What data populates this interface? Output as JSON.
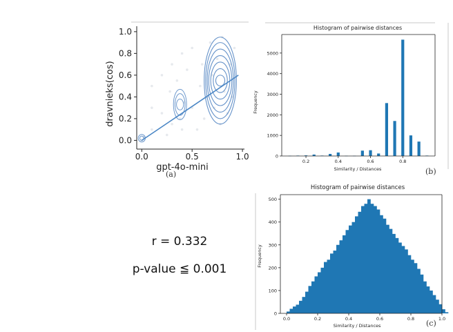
{
  "chart_data": [
    {
      "type": "scatter",
      "panel_label": "(a)",
      "xlabel": "gpt-4o-mini",
      "ylabel": "dravnieks(cos)",
      "xlim": [
        -0.05,
        1.02
      ],
      "ylim": [
        -0.08,
        1.05
      ],
      "xticks": [
        "0.0",
        "0.5",
        "1.0"
      ],
      "yticks": [
        "0.0",
        "0.2",
        "0.4",
        "0.6",
        "0.8",
        "1.0"
      ],
      "regression_line": {
        "x": [
          0.0,
          0.96
        ],
        "y": [
          0.0,
          0.6
        ]
      },
      "kde_peaks": [
        {
          "x": 0.0,
          "y": 0.02
        },
        {
          "x": 0.38,
          "y": 0.33
        },
        {
          "x": 0.78,
          "y": 0.55
        }
      ],
      "points": [
        {
          "x": 0.0,
          "y": 0.0
        },
        {
          "x": 0.02,
          "y": 0.03
        },
        {
          "x": 0.1,
          "y": 0.5
        },
        {
          "x": 0.1,
          "y": 0.3
        },
        {
          "x": 0.1,
          "y": 0.1
        },
        {
          "x": 0.2,
          "y": 0.6
        },
        {
          "x": 0.2,
          "y": 0.25
        },
        {
          "x": 0.25,
          "y": 0.05
        },
        {
          "x": 0.28,
          "y": 0.45
        },
        {
          "x": 0.3,
          "y": 0.7
        },
        {
          "x": 0.3,
          "y": 0.15
        },
        {
          "x": 0.35,
          "y": 0.55
        },
        {
          "x": 0.38,
          "y": 0.2
        },
        {
          "x": 0.4,
          "y": 0.8
        },
        {
          "x": 0.4,
          "y": 0.1
        },
        {
          "x": 0.42,
          "y": 0.35
        },
        {
          "x": 0.45,
          "y": 0.65
        },
        {
          "x": 0.5,
          "y": 0.3
        },
        {
          "x": 0.5,
          "y": 0.85
        },
        {
          "x": 0.55,
          "y": 0.1
        },
        {
          "x": 0.58,
          "y": 0.5
        },
        {
          "x": 0.6,
          "y": 0.7
        },
        {
          "x": 0.62,
          "y": 0.2
        },
        {
          "x": 0.65,
          "y": 0.4
        },
        {
          "x": 0.68,
          "y": 0.9
        },
        {
          "x": 0.7,
          "y": 0.6
        },
        {
          "x": 0.72,
          "y": 0.3
        },
        {
          "x": 0.75,
          "y": 0.75
        },
        {
          "x": 0.78,
          "y": 0.15
        },
        {
          "x": 0.8,
          "y": 0.95
        },
        {
          "x": 0.82,
          "y": 0.45
        },
        {
          "x": 0.85,
          "y": 0.25
        },
        {
          "x": 0.88,
          "y": 0.7
        },
        {
          "x": 0.9,
          "y": 0.4
        },
        {
          "x": 0.92,
          "y": 0.85
        }
      ]
    },
    {
      "type": "bar",
      "panel_label": "(b)",
      "title": "Histogram of pairwise distances",
      "xlabel": "Similarity / Distances",
      "ylabel": "Frequency",
      "xlim": [
        0.05,
        1.0
      ],
      "ylim": [
        0,
        5900
      ],
      "xticks": [
        0.2,
        0.4,
        0.6,
        0.8
      ],
      "yticks": [
        0,
        1000,
        2000,
        3000,
        4000,
        5000
      ],
      "bar_width": 0.018,
      "x": [
        0.1,
        0.15,
        0.2,
        0.25,
        0.3,
        0.35,
        0.4,
        0.45,
        0.5,
        0.55,
        0.6,
        0.65,
        0.7,
        0.75,
        0.8,
        0.85,
        0.9,
        0.95
      ],
      "values": [
        10,
        20,
        30,
        70,
        20,
        100,
        170,
        10,
        10,
        260,
        280,
        120,
        2570,
        1700,
        5650,
        1000,
        700,
        20
      ]
    },
    {
      "type": "bar",
      "panel_label": "(c)",
      "title": "Histogram of pairwise distances",
      "xlabel": "Similarity / Distances",
      "ylabel": "Frequency",
      "xlim": [
        -0.04,
        1.0
      ],
      "ylim": [
        0,
        520
      ],
      "xticks": [
        0.0,
        0.2,
        0.4,
        0.6,
        0.8,
        1.0
      ],
      "yticks": [
        0,
        100,
        200,
        300,
        400,
        500
      ],
      "bin_start": 0.0,
      "bin_width": 0.02,
      "values": [
        8,
        20,
        30,
        38,
        55,
        72,
        95,
        120,
        140,
        162,
        180,
        200,
        225,
        235,
        262,
        275,
        300,
        320,
        342,
        365,
        385,
        400,
        425,
        445,
        470,
        480,
        500,
        480,
        470,
        455,
        430,
        415,
        388,
        370,
        348,
        330,
        310,
        295,
        280,
        255,
        235,
        220,
        195,
        170,
        140,
        118,
        100,
        80,
        60,
        40,
        18,
        5
      ]
    }
  ],
  "stats": {
    "r_text": "r = 0.332",
    "p_text": "p-value ≦ 0.001"
  },
  "colors": {
    "bar": "#1f77b4",
    "kde": "#4a7fc0",
    "regression": "#4a86c5",
    "points": "#9aa9b8"
  }
}
